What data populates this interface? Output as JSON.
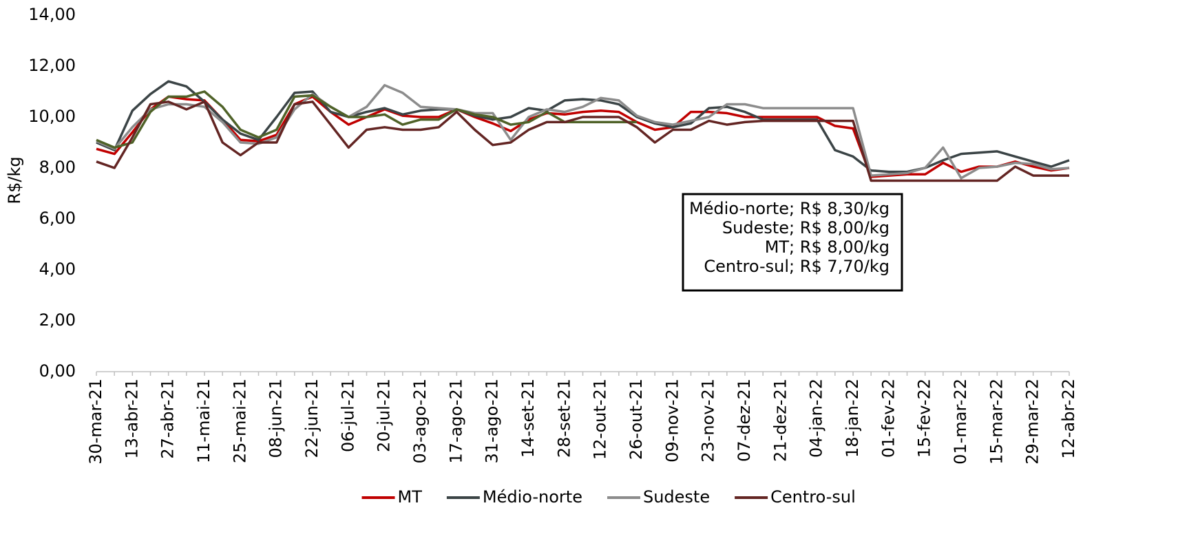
{
  "chart_data": {
    "type": "line",
    "y_label": "R$/kg",
    "categories": [
      "30-mar-21",
      null,
      "13-abr-21",
      null,
      "27-abr-21",
      null,
      "11-mai-21",
      null,
      "25-mai-21",
      null,
      "08-jun-21",
      null,
      "22-jun-21",
      null,
      "06-jul-21",
      null,
      "20-jul-21",
      null,
      "03-ago-21",
      null,
      "17-ago-21",
      null,
      "31-ago-21",
      null,
      "14-set-21",
      null,
      "28-set-21",
      null,
      "12-out-21",
      null,
      "26-out-21",
      null,
      "09-nov-21",
      null,
      "23-nov-21",
      null,
      "07-dez-21",
      null,
      "21-dez-21",
      null,
      "04-jan-22",
      null,
      "18-jan-22",
      null,
      "01-fev-22",
      null,
      "15-fev-22",
      null,
      "01-mar-22",
      null,
      "15-mar-22",
      null,
      "29-mar-22",
      null,
      "12-abr-22"
    ],
    "series": [
      {
        "name": "MT",
        "color": "#c00000",
        "values": [
          8.75,
          8.55,
          9.4,
          10.3,
          10.8,
          10.7,
          10.65,
          9.9,
          9.1,
          9.05,
          9.3,
          10.5,
          10.8,
          10.2,
          9.7,
          10.0,
          10.3,
          10.05,
          10.0,
          10.0,
          10.3,
          10.0,
          9.75,
          9.45,
          9.9,
          10.15,
          10.1,
          10.2,
          10.25,
          10.2,
          9.8,
          9.5,
          9.6,
          10.2,
          10.2,
          10.15,
          10.0,
          10.0,
          10.0,
          10.0,
          10.0,
          9.65,
          9.55,
          7.65,
          7.7,
          7.75,
          7.75,
          8.2,
          7.85,
          8.05,
          8.05,
          8.25,
          8.05,
          7.9,
          8.0
        ]
      },
      {
        "name": "Médio-norte",
        "color": "#3b4446",
        "values": [
          9.0,
          8.7,
          10.25,
          10.9,
          11.4,
          11.2,
          10.6,
          9.9,
          9.35,
          9.1,
          10.0,
          10.95,
          11.0,
          10.2,
          10.0,
          10.2,
          10.35,
          10.1,
          10.25,
          10.3,
          10.3,
          10.05,
          9.9,
          10.0,
          10.35,
          10.25,
          10.65,
          10.7,
          10.65,
          10.5,
          10.0,
          9.75,
          9.6,
          9.75,
          10.35,
          10.4,
          10.2,
          9.9,
          9.9,
          9.9,
          9.9,
          8.7,
          8.45,
          7.9,
          7.85,
          7.85,
          8.0,
          8.3,
          8.55,
          8.6,
          8.65,
          8.45,
          8.25,
          8.05,
          8.3
        ]
      },
      {
        "name": "Sudeste",
        "color": "#8c8c8c",
        "values": [
          9.05,
          8.75,
          9.6,
          10.3,
          10.5,
          10.5,
          10.4,
          9.8,
          9.0,
          8.95,
          9.2,
          10.3,
          10.9,
          10.4,
          10.0,
          10.4,
          11.25,
          10.95,
          10.4,
          10.35,
          10.3,
          10.15,
          10.15,
          9.1,
          10.0,
          10.3,
          10.2,
          10.4,
          10.75,
          10.65,
          10.05,
          9.8,
          9.7,
          9.85,
          10.0,
          10.5,
          10.5,
          10.35,
          10.35,
          10.35,
          10.35,
          10.35,
          10.35,
          7.7,
          7.75,
          7.8,
          8.0,
          8.8,
          7.6,
          8.0,
          8.05,
          8.2,
          8.15,
          7.95,
          8.0
        ]
      },
      {
        "color": "#4f6228",
        "values": [
          9.1,
          8.8,
          9.0,
          10.2,
          10.8,
          10.8,
          11.0,
          10.4,
          9.5,
          9.2,
          9.5,
          10.8,
          10.85,
          10.4,
          10.0,
          10.0,
          10.1,
          9.7,
          9.9,
          9.9,
          10.3,
          10.1,
          10.0,
          9.7,
          9.8,
          10.2,
          9.8,
          9.8,
          9.8,
          9.8,
          9.8,
          null,
          null,
          null,
          null,
          null,
          null,
          null,
          null,
          null,
          null,
          null,
          null,
          null,
          null,
          null,
          null,
          null,
          null,
          null,
          null,
          null,
          null,
          null,
          null
        ]
      },
      {
        "name": "Centro-sul",
        "color": "#632523",
        "values": [
          8.25,
          8.0,
          9.2,
          10.5,
          10.6,
          10.3,
          10.6,
          9.0,
          8.5,
          9.0,
          9.0,
          10.5,
          10.6,
          9.7,
          8.8,
          9.5,
          9.6,
          9.5,
          9.5,
          9.6,
          10.2,
          9.5,
          8.9,
          9.0,
          9.5,
          9.8,
          9.8,
          10.0,
          10.0,
          10.0,
          9.6,
          9.0,
          9.5,
          9.5,
          9.85,
          9.7,
          9.8,
          9.85,
          9.85,
          9.85,
          9.85,
          9.85,
          9.85,
          7.5,
          7.5,
          7.5,
          7.5,
          7.5,
          7.5,
          7.5,
          7.5,
          8.05,
          7.7,
          7.7,
          7.7
        ]
      }
    ],
    "ylim": [
      0,
      14
    ],
    "yticks": [
      {
        "value": 0,
        "label": "0,00"
      },
      {
        "value": 2,
        "label": "2,00"
      },
      {
        "value": 4,
        "label": "4,00"
      },
      {
        "value": 6,
        "label": "6,00"
      },
      {
        "value": 8,
        "label": "8,00"
      },
      {
        "value": 10,
        "label": "10,00"
      },
      {
        "value": 12,
        "label": "12,00"
      },
      {
        "value": 14,
        "label": "14,00"
      }
    ],
    "annotation": [
      "Médio-norte; R$ 8,30/kg",
      "Sudeste; R$ 8,00/kg",
      "MT; R$ 8,00/kg",
      "Centro-sul; R$ 7,70/kg"
    ],
    "legend": "bottom"
  }
}
